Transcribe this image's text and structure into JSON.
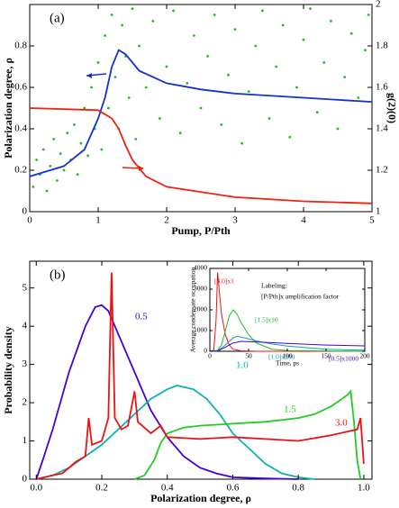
{
  "chart_data": [
    {
      "type": "scatter",
      "panel_label": "(a)",
      "xlabel": "Pump, P/Pth",
      "ylabel": "Polarization degree, ρ",
      "y2label": "g(2)(0)",
      "xlim": [
        0,
        5
      ],
      "xticks": [
        0,
        1,
        2,
        3,
        4,
        5
      ],
      "ylim": [
        0,
        1
      ],
      "yticks": [
        0,
        0.2,
        0.4,
        0.6,
        0.8
      ],
      "y2lim": [
        1,
        2
      ],
      "y2ticks": [
        1,
        1.2,
        1.4,
        1.6,
        1.8,
        2
      ],
      "series": [
        {
          "mode": "markers",
          "color": "#22bb22",
          "x": [
            0.05,
            0.1,
            0.15,
            0.2,
            0.25,
            0.3,
            0.35,
            0.4,
            0.45,
            0.5,
            0.55,
            0.6,
            0.65,
            0.7,
            0.75,
            0.8,
            0.85,
            0.9,
            0.95,
            1.0,
            1.05,
            1.1,
            1.15,
            1.2,
            1.25,
            1.3,
            1.35,
            1.4,
            1.45,
            1.5,
            1.55,
            1.6,
            1.7,
            1.8,
            1.9,
            2.0,
            2.1,
            2.2,
            2.3,
            2.4,
            2.5,
            2.6,
            2.7,
            2.8,
            2.9,
            3.0,
            3.1,
            3.2,
            3.3,
            3.4,
            3.5,
            3.6,
            3.7,
            3.8,
            3.9,
            4.0,
            4.1,
            4.2,
            4.3,
            4.4,
            4.5,
            4.6,
            4.7,
            4.8,
            4.9,
            4.95
          ],
          "values": [
            0.12,
            0.25,
            0.18,
            0.3,
            0.1,
            0.22,
            0.35,
            0.15,
            0.28,
            0.2,
            0.38,
            0.25,
            0.42,
            0.18,
            0.33,
            0.5,
            0.27,
            0.6,
            0.4,
            0.72,
            0.3,
            0.85,
            0.5,
            0.95,
            0.65,
            0.4,
            0.9,
            0.75,
            0.55,
            0.98,
            0.35,
            0.8,
            0.6,
            0.92,
            0.45,
            0.7,
            0.97,
            0.38,
            0.62,
            0.85,
            0.5,
            0.75,
            0.95,
            0.42,
            0.66,
            0.88,
            0.33,
            0.58,
            0.8,
            0.97,
            0.45,
            0.7,
            0.9,
            0.36,
            0.6,
            0.83,
            0.98,
            0.48,
            0.72,
            0.92,
            0.4,
            0.65,
            0.86,
            0.55,
            0.78,
            0.95
          ]
        },
        {
          "mode": "lines",
          "color": "#1133cc",
          "x": [
            0,
            0.5,
            0.8,
            1.0,
            1.1,
            1.2,
            1.3,
            1.4,
            1.6,
            2,
            2.5,
            3,
            4,
            5
          ],
          "values": [
            0.17,
            0.22,
            0.3,
            0.45,
            0.55,
            0.7,
            0.78,
            0.76,
            0.68,
            0.62,
            0.59,
            0.57,
            0.55,
            0.53
          ]
        },
        {
          "mode": "lines",
          "color": "#ee2211",
          "axis": "y2",
          "x": [
            0,
            1.0,
            1.2,
            1.3,
            1.4,
            1.5,
            1.7,
            2,
            3,
            4,
            5
          ],
          "values": [
            1.5,
            1.49,
            1.45,
            1.4,
            1.32,
            1.25,
            1.17,
            1.12,
            1.07,
            1.05,
            1.04
          ]
        }
      ]
    },
    {
      "type": "line",
      "panel_label": "(b)",
      "xlabel": "Polarization degree, ρ",
      "ylabel": "Probability density",
      "xlim": [
        -0.02,
        1.025
      ],
      "xticks": [
        {
          "value": 0,
          "label": "0.0"
        },
        0.2,
        0.4,
        0.6,
        0.8,
        {
          "value": 1,
          "label": "1.0"
        }
      ],
      "ylim": [
        0,
        5.7
      ],
      "yticks": [
        0,
        1,
        2,
        3,
        4,
        5
      ],
      "series": [
        {
          "name": "0.5",
          "color": "#4400dd",
          "x": [
            0,
            0.02,
            0.05,
            0.1,
            0.15,
            0.18,
            0.2,
            0.22,
            0.25,
            0.3,
            0.35,
            0.4,
            0.45,
            0.5,
            0.55,
            0.6,
            0.7,
            0.8
          ],
          "values": [
            0,
            0.5,
            1.3,
            2.8,
            4.0,
            4.5,
            4.55,
            4.4,
            3.8,
            2.8,
            1.8,
            1.1,
            0.6,
            0.3,
            0.15,
            0.05,
            0.02,
            0
          ]
        },
        {
          "name": "1.0",
          "color": "#11b0b8",
          "x": [
            0,
            0.05,
            0.1,
            0.15,
            0.2,
            0.25,
            0.3,
            0.35,
            0.4,
            0.43,
            0.48,
            0.52,
            0.56,
            0.6,
            0.65,
            0.7,
            0.75,
            0.8,
            0.85
          ],
          "values": [
            0,
            0.1,
            0.3,
            0.6,
            0.9,
            1.3,
            1.7,
            2.1,
            2.35,
            2.45,
            2.35,
            2.1,
            1.7,
            1.2,
            0.8,
            0.4,
            0.15,
            0.05,
            0
          ]
        },
        {
          "name": "1.5",
          "color": "#22cc22",
          "x": [
            0.3,
            0.33,
            0.36,
            0.38,
            0.4,
            0.45,
            0.5,
            0.6,
            0.7,
            0.8,
            0.85,
            0.9,
            0.95,
            0.96,
            0.97,
            0.98,
            0.99
          ],
          "values": [
            0,
            0.1,
            0.5,
            0.95,
            1.2,
            1.35,
            1.4,
            1.45,
            1.5,
            1.6,
            1.7,
            1.9,
            2.2,
            2.3,
            1.5,
            0.5,
            0
          ]
        },
        {
          "name": "3.0",
          "color": "#ee1111",
          "x": [
            0,
            0.05,
            0.08,
            0.1,
            0.12,
            0.15,
            0.16,
            0.17,
            0.2,
            0.22,
            0.23,
            0.24,
            0.26,
            0.28,
            0.3,
            0.31,
            0.35,
            0.38,
            0.4,
            0.5,
            0.6,
            0.7,
            0.8,
            0.9,
            0.98,
            0.99,
            1.0
          ],
          "values": [
            0,
            0.1,
            0.15,
            0.3,
            0.45,
            0.6,
            1.6,
            0.9,
            1.0,
            1.6,
            5.4,
            1.6,
            1.3,
            1.4,
            2.3,
            1.5,
            1.2,
            1.4,
            1.1,
            1.05,
            1.1,
            1.05,
            1.0,
            1.15,
            1.3,
            1.6,
            0.4
          ]
        }
      ]
    },
    {
      "type": "line",
      "xlabel": "Time, ps",
      "ylabel": "Average condensate occupation",
      "annotations": [
        "Labeling:",
        "[P/Pth]x amplification factor"
      ],
      "xlim": [
        0,
        200
      ],
      "xticks": [
        0,
        50,
        100,
        150,
        200
      ],
      "ylim": [
        0,
        4000
      ],
      "yticks": [
        0,
        1000,
        2000,
        3000,
        4000
      ],
      "series": [
        {
          "name": "[3.0]x1",
          "color": "#ee1111",
          "x": [
            0,
            5,
            8,
            10,
            12,
            15,
            20,
            25,
            30,
            40,
            60,
            200
          ],
          "values": [
            0,
            50,
            1500,
            3800,
            3000,
            1800,
            800,
            300,
            100,
            20,
            0,
            0
          ]
        },
        {
          "name": "[1.5]x10",
          "color": "#22bb22",
          "x": [
            0,
            10,
            15,
            20,
            25,
            30,
            35,
            40,
            50,
            60,
            80,
            100,
            200
          ],
          "values": [
            0,
            50,
            300,
            1000,
            1700,
            2000,
            1800,
            1400,
            800,
            400,
            100,
            30,
            0
          ]
        },
        {
          "name": "[1.0]x200",
          "color": "#11a0b0",
          "x": [
            0,
            10,
            20,
            30,
            35,
            45,
            60,
            80,
            100,
            150,
            200
          ],
          "values": [
            0,
            20,
            300,
            650,
            720,
            650,
            500,
            350,
            250,
            100,
            50
          ]
        },
        {
          "name": "[0.5]x1000",
          "color": "#4400dd",
          "x": [
            0,
            10,
            20,
            30,
            40,
            60,
            100,
            150,
            200
          ],
          "values": [
            0,
            10,
            200,
            400,
            480,
            450,
            380,
            300,
            260
          ]
        }
      ]
    }
  ]
}
